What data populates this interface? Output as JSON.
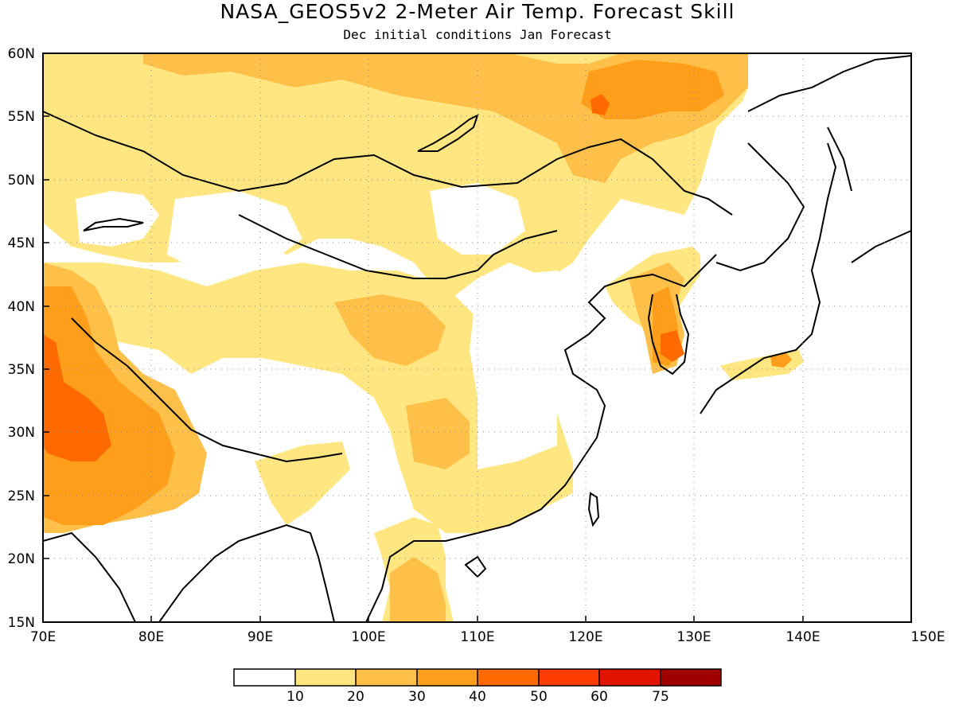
{
  "title": "NASA_GEOS5v2 2-Meter Air Temp. Forecast Skill",
  "subtitle": "Dec initial conditions  Jan Forecast",
  "axes": {
    "lon_ticks": [
      "70E",
      "80E",
      "90E",
      "100E",
      "110E",
      "120E",
      "130E",
      "140E",
      "150E"
    ],
    "lat_ticks": [
      "15N",
      "20N",
      "25N",
      "30N",
      "35N",
      "40N",
      "45N",
      "50N",
      "55N",
      "60N"
    ],
    "lon_range": [
      70,
      150
    ],
    "lat_range": [
      15,
      60
    ],
    "grid": "dotted"
  },
  "colorbar": {
    "labels": [
      "10",
      "20",
      "30",
      "40",
      "50",
      "60",
      "75"
    ],
    "colors": [
      "#ffffff",
      "#ffe680",
      "#ffc04a",
      "#ff9e1a",
      "#ff6a00",
      "#ff3c00",
      "#e01400",
      "#a00000"
    ]
  },
  "skill_regions": [
    {
      "level": 1,
      "area": "northern Siberia band 55N-60N"
    },
    {
      "level": 2,
      "area": "southwest Asia 25N-40N, 70E-80E"
    },
    {
      "level": 4,
      "area": "Pakistan / northwest India ~30N, 70E-75E"
    },
    {
      "level": 1,
      "area": "central China / Mongolia scattered"
    },
    {
      "level": 3,
      "area": "Korea ~35N-37N, 126E-128E"
    },
    {
      "level": 3,
      "area": "Japan ~35N, 137E-140E"
    }
  ]
}
